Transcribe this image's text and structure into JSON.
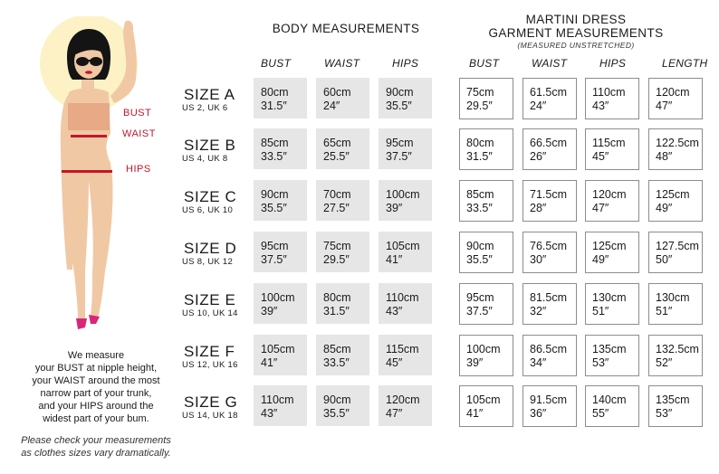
{
  "figure_labels": {
    "bust": "BUST",
    "waist": "WAIST",
    "hips": "HIPS"
  },
  "description": [
    "We measure",
    "your BUST at nipple height,",
    "your WAIST around the most",
    "narrow part of your trunk,",
    "and your HIPS around the",
    "widest part of your bum."
  ],
  "note": [
    "Please check your measurements",
    "as clothes sizes vary dramatically."
  ],
  "body_section": {
    "title": "BODY MEASUREMENTS",
    "columns": [
      "BUST",
      "WAIST",
      "HIPS"
    ]
  },
  "garment_section": {
    "title_line1": "MARTINI DRESS",
    "title_line2": "GARMENT MEASUREMENTS",
    "subtitle": "(MEASURED UNSTRETCHED)",
    "columns": [
      "BUST",
      "WAIST",
      "HIPS",
      "LENGTH"
    ]
  },
  "rows": [
    {
      "size": "SIZE A",
      "us_uk": "US 2, UK 6",
      "body": [
        [
          "80cm",
          "31.5″"
        ],
        [
          "60cm",
          "24″"
        ],
        [
          "90cm",
          "35.5″"
        ]
      ],
      "garment": [
        [
          "75cm",
          "29.5″"
        ],
        [
          "61.5cm",
          "24″"
        ],
        [
          "110cm",
          "43″"
        ],
        [
          "120cm",
          "47″"
        ]
      ]
    },
    {
      "size": "SIZE B",
      "us_uk": "US 4, UK 8",
      "body": [
        [
          "85cm",
          "33.5″"
        ],
        [
          "65cm",
          "25.5″"
        ],
        [
          "95cm",
          "37.5″"
        ]
      ],
      "garment": [
        [
          "80cm",
          "31.5″"
        ],
        [
          "66.5cm",
          "26″"
        ],
        [
          "115cm",
          "45″"
        ],
        [
          "122.5cm",
          "48″"
        ]
      ]
    },
    {
      "size": "SIZE C",
      "us_uk": "US 6, UK 10",
      "body": [
        [
          "90cm",
          "35.5″"
        ],
        [
          "70cm",
          "27.5″"
        ],
        [
          "100cm",
          "39″"
        ]
      ],
      "garment": [
        [
          "85cm",
          "33.5″"
        ],
        [
          "71.5cm",
          "28″"
        ],
        [
          "120cm",
          "47″"
        ],
        [
          "125cm",
          "49″"
        ]
      ]
    },
    {
      "size": "SIZE D",
      "us_uk": "US 8, UK 12",
      "body": [
        [
          "95cm",
          "37.5″"
        ],
        [
          "75cm",
          "29.5″"
        ],
        [
          "105cm",
          "41″"
        ]
      ],
      "garment": [
        [
          "90cm",
          "35.5″"
        ],
        [
          "76.5cm",
          "30″"
        ],
        [
          "125cm",
          "49″"
        ],
        [
          "127.5cm",
          "50″"
        ]
      ]
    },
    {
      "size": "SIZE E",
      "us_uk": "US 10, UK 14",
      "body": [
        [
          "100cm",
          "39″"
        ],
        [
          "80cm",
          "31.5″"
        ],
        [
          "110cm",
          "43″"
        ]
      ],
      "garment": [
        [
          "95cm",
          "37.5″"
        ],
        [
          "81.5cm",
          "32″"
        ],
        [
          "130cm",
          "51″"
        ],
        [
          "130cm",
          "51″"
        ]
      ]
    },
    {
      "size": "SIZE F",
      "us_uk": "US 12, UK 16",
      "body": [
        [
          "105cm",
          "41″"
        ],
        [
          "85cm",
          "33.5″"
        ],
        [
          "115cm",
          "45″"
        ]
      ],
      "garment": [
        [
          "100cm",
          "39″"
        ],
        [
          "86.5cm",
          "34″"
        ],
        [
          "135cm",
          "53″"
        ],
        [
          "132.5cm",
          "52″"
        ]
      ]
    },
    {
      "size": "SIZE G",
      "us_uk": "US 14, UK 18",
      "body": [
        [
          "110cm",
          "43″"
        ],
        [
          "90cm",
          "35.5″"
        ],
        [
          "120cm",
          "47″"
        ]
      ],
      "garment": [
        [
          "105cm",
          "41″"
        ],
        [
          "91.5cm",
          "36″"
        ],
        [
          "140cm",
          "55″"
        ],
        [
          "135cm",
          "53″"
        ]
      ]
    }
  ],
  "colors": {
    "accent": "#c3162b",
    "body_cell": "#e6e6e6",
    "garment_border": "#8c8c8c",
    "skin": "#f0c8a4",
    "halo": "#fdf2c6"
  }
}
